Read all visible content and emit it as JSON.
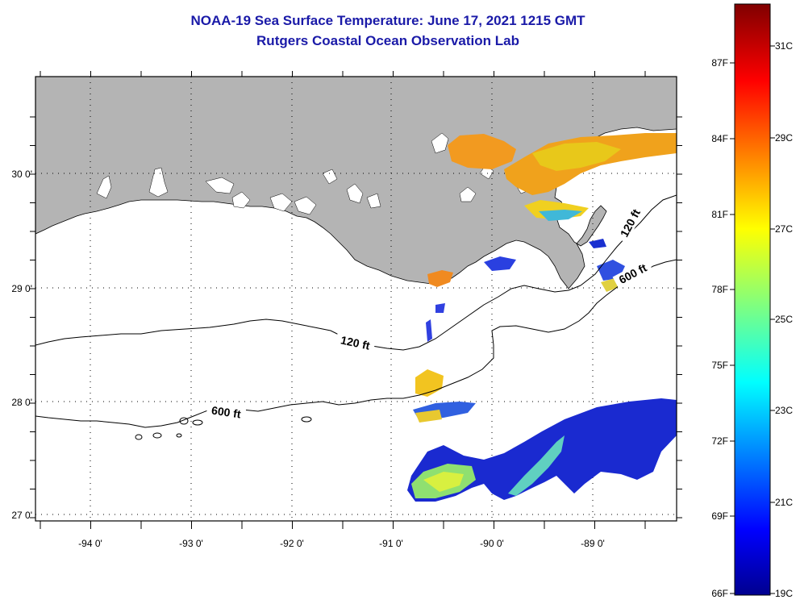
{
  "header": {
    "title": "NOAA-19 Sea Surface Temperature:  June 17, 2021 1215 GMT",
    "subtitle": "Rutgers Coastal Ocean Observation Lab"
  },
  "map": {
    "longitude_range": [
      -94.55,
      -88.3
    ],
    "latitude_range": [
      26.95,
      30.85
    ],
    "lon_ticks": [
      "-94 0'",
      "-93 0'",
      "-92 0'",
      "-91 0'",
      "-90 0'",
      "-89 0'"
    ],
    "lat_ticks": [
      "30 0'",
      "29 0'",
      "28 0'",
      "27 0'"
    ],
    "land_color": "#b4b4b4",
    "ocean_color": "#ffffff",
    "grid": "dotted",
    "contours": [
      {
        "label": "120 ft",
        "depth_ft": 120
      },
      {
        "label": "600 ft",
        "depth_ft": 600
      },
      {
        "label": "120 ft",
        "depth_ft": 120
      },
      {
        "label": "600 ft",
        "depth_ft": 600
      }
    ]
  },
  "colorbar": {
    "colormap": "jet",
    "fahrenheit_labels": [
      "87F",
      "84F",
      "81F",
      "78F",
      "75F",
      "72F",
      "69F",
      "66F"
    ],
    "celsius_labels": [
      "31C",
      "29C",
      "27C",
      "25C",
      "23C",
      "21C",
      "19C"
    ],
    "range_c": [
      19,
      32
    ],
    "top_color": "#800000",
    "bottom_color": "#00008f"
  }
}
